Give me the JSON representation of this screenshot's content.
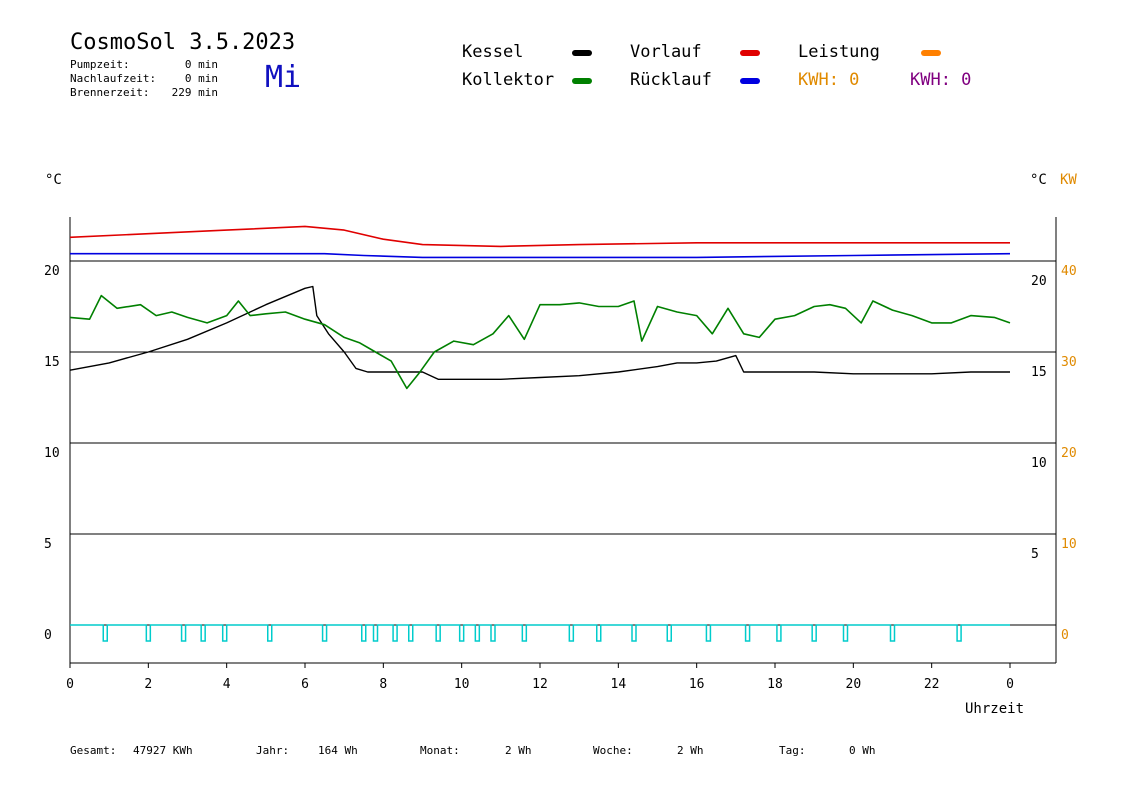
{
  "header": {
    "title": "CosmoSol 3.5.2023",
    "weekday": "Mi",
    "pump_label": "Pumpzeit:",
    "pump_value": "0 min",
    "afterrun_label": "Nachlaufzeit:",
    "afterrun_value": "0 min",
    "burner_label": "Brennerzeit:",
    "burner_value": "229 min"
  },
  "legend": {
    "kessel": "Kessel",
    "kollektor": "Kollektor",
    "vorlauf": "Vorlauf",
    "ruecklauf": "Rücklauf",
    "leistung": "Leistung",
    "kwh_orange": "KWH: 0",
    "kwh_purple": "KWH: 0"
  },
  "colors": {
    "kessel": "#000000",
    "kollektor": "#008000",
    "vorlauf": "#e00000",
    "ruecklauf": "#0000e0",
    "leistung": "#ff8000",
    "pump": "#00cccc",
    "kwh_orange": "#e08a00",
    "kwh_purple": "#800080"
  },
  "axes": {
    "left_unit": "°C",
    "right_unit": "°C",
    "right_unit2": "KW",
    "xlabel": "Uhrzeit"
  },
  "footer": {
    "gesamt_label": "Gesamt:",
    "gesamt_value": "47927 KWh",
    "jahr_label": "Jahr:",
    "jahr_value": "164 Wh",
    "monat_label": "Monat:",
    "monat_value": "2 Wh",
    "woche_label": "Woche:",
    "woche_value": "2 Wh",
    "tag_label": "Tag:",
    "tag_value": "0 Wh"
  },
  "chart_data": {
    "type": "line",
    "xlabel": "Uhrzeit",
    "x_ticks": [
      "0",
      "2",
      "4",
      "6",
      "8",
      "10",
      "12",
      "14",
      "16",
      "18",
      "20",
      "22",
      "0"
    ],
    "xlim": [
      0,
      24
    ],
    "ylim_left": [
      -3,
      22.5
    ],
    "y_ticks_left": [
      0,
      5,
      10,
      15,
      20
    ],
    "y_ticks_right_inner": [
      5,
      10,
      15,
      20
    ],
    "y_ticks_right_kw": [
      0,
      10,
      20,
      30,
      40
    ],
    "grid_y": [
      0,
      5,
      10,
      15,
      20
    ],
    "series": [
      {
        "name": "Kessel",
        "color": "#000000",
        "points": [
          [
            0,
            14.0
          ],
          [
            1,
            14.4
          ],
          [
            2,
            15.0
          ],
          [
            3,
            15.7
          ],
          [
            4,
            16.6
          ],
          [
            5,
            17.6
          ],
          [
            6,
            18.5
          ],
          [
            6.2,
            18.6
          ],
          [
            6.3,
            17.0
          ],
          [
            6.6,
            16.0
          ],
          [
            7.0,
            15.0
          ],
          [
            7.3,
            14.1
          ],
          [
            7.6,
            13.9
          ],
          [
            8,
            13.9
          ],
          [
            9,
            13.9
          ],
          [
            9.4,
            13.5
          ],
          [
            10,
            13.5
          ],
          [
            11,
            13.5
          ],
          [
            12,
            13.6
          ],
          [
            13,
            13.7
          ],
          [
            14,
            13.9
          ],
          [
            15,
            14.2
          ],
          [
            15.5,
            14.4
          ],
          [
            16,
            14.4
          ],
          [
            16.5,
            14.5
          ],
          [
            17,
            14.8
          ],
          [
            17.2,
            13.9
          ],
          [
            18,
            13.9
          ],
          [
            19,
            13.9
          ],
          [
            20,
            13.8
          ],
          [
            21,
            13.8
          ],
          [
            22,
            13.8
          ],
          [
            23,
            13.9
          ],
          [
            24,
            13.9
          ]
        ]
      },
      {
        "name": "Kollektor",
        "color": "#008000",
        "points": [
          [
            0,
            16.9
          ],
          [
            0.5,
            16.8
          ],
          [
            0.8,
            18.1
          ],
          [
            1.2,
            17.4
          ],
          [
            1.8,
            17.6
          ],
          [
            2.2,
            17.0
          ],
          [
            2.6,
            17.2
          ],
          [
            3,
            16.9
          ],
          [
            3.5,
            16.6
          ],
          [
            4,
            17.0
          ],
          [
            4.3,
            17.8
          ],
          [
            4.6,
            17.0
          ],
          [
            5,
            17.1
          ],
          [
            5.5,
            17.2
          ],
          [
            6,
            16.8
          ],
          [
            6.5,
            16.5
          ],
          [
            7,
            15.8
          ],
          [
            7.4,
            15.5
          ],
          [
            7.8,
            15.0
          ],
          [
            8.2,
            14.5
          ],
          [
            8.6,
            13.0
          ],
          [
            8.9,
            13.8
          ],
          [
            9.3,
            15.0
          ],
          [
            9.8,
            15.6
          ],
          [
            10.3,
            15.4
          ],
          [
            10.8,
            16.0
          ],
          [
            11.2,
            17.0
          ],
          [
            11.6,
            15.7
          ],
          [
            12,
            17.6
          ],
          [
            12.5,
            17.6
          ],
          [
            13,
            17.7
          ],
          [
            13.5,
            17.5
          ],
          [
            14,
            17.5
          ],
          [
            14.4,
            17.8
          ],
          [
            14.6,
            15.6
          ],
          [
            15,
            17.5
          ],
          [
            15.5,
            17.2
          ],
          [
            16,
            17.0
          ],
          [
            16.4,
            16.0
          ],
          [
            16.8,
            17.4
          ],
          [
            17.2,
            16.0
          ],
          [
            17.6,
            15.8
          ],
          [
            18,
            16.8
          ],
          [
            18.5,
            17.0
          ],
          [
            19,
            17.5
          ],
          [
            19.4,
            17.6
          ],
          [
            19.8,
            17.4
          ],
          [
            20.2,
            16.6
          ],
          [
            20.5,
            17.8
          ],
          [
            21,
            17.3
          ],
          [
            21.5,
            17.0
          ],
          [
            22,
            16.6
          ],
          [
            22.5,
            16.6
          ],
          [
            23,
            17.0
          ],
          [
            23.6,
            16.9
          ],
          [
            24,
            16.6
          ]
        ]
      },
      {
        "name": "Vorlauf",
        "color": "#e00000",
        "points": [
          [
            0,
            21.3
          ],
          [
            2,
            21.5
          ],
          [
            4,
            21.7
          ],
          [
            6,
            21.9
          ],
          [
            7,
            21.7
          ],
          [
            8,
            21.2
          ],
          [
            9,
            20.9
          ],
          [
            11,
            20.8
          ],
          [
            13,
            20.9
          ],
          [
            16,
            21.0
          ],
          [
            19,
            21.0
          ],
          [
            22,
            21.0
          ],
          [
            24,
            21.0
          ]
        ]
      },
      {
        "name": "Rücklauf",
        "color": "#0000e0",
        "points": [
          [
            0,
            20.4
          ],
          [
            6.5,
            20.4
          ],
          [
            7.5,
            20.3
          ],
          [
            9,
            20.2
          ],
          [
            12,
            20.2
          ],
          [
            16,
            20.2
          ],
          [
            20,
            20.3
          ],
          [
            24,
            20.4
          ]
        ]
      }
    ],
    "pump_pulses_hours": [
      0.9,
      2.0,
      2.9,
      3.4,
      3.95,
      5.1,
      6.5,
      7.5,
      7.8,
      8.3,
      8.7,
      9.4,
      10.0,
      10.4,
      10.8,
      11.6,
      12.8,
      13.5,
      14.4,
      15.3,
      16.3,
      17.3,
      18.1,
      19.0,
      19.8,
      21.0,
      22.7
    ]
  }
}
